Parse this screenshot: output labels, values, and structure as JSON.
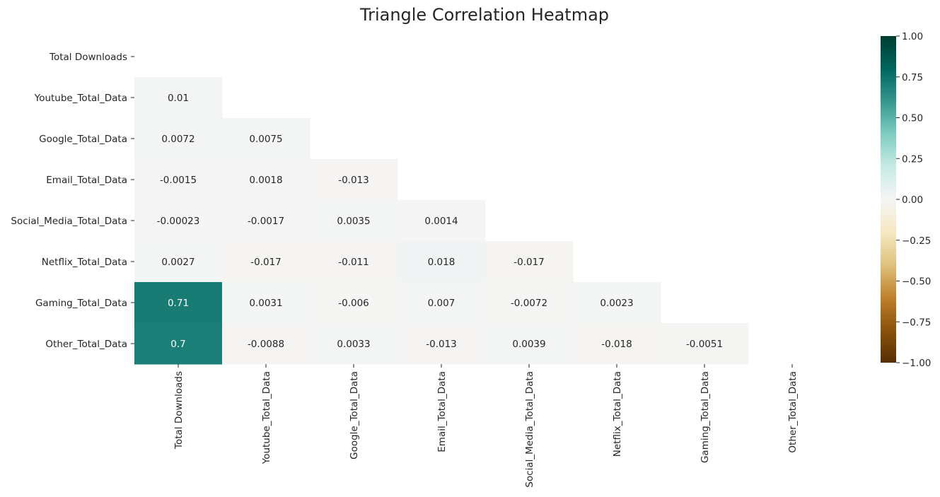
{
  "chart_data": {
    "type": "heatmap",
    "title": "Triangle Correlation Heatmap",
    "variables": [
      "Total Downloads",
      "Youtube_Total_Data",
      "Google_Total_Data",
      "Email_Total_Data",
      "Social_Media_Total_Data",
      "Netflix_Total_Data",
      "Gaming_Total_Data",
      "Other_Total_Data"
    ],
    "mask": "upper triangle including diagonal",
    "cells": [
      {
        "row": 1,
        "col": 0,
        "value": 0.01,
        "label": "0.01"
      },
      {
        "row": 2,
        "col": 0,
        "value": 0.0072,
        "label": "0.0072"
      },
      {
        "row": 2,
        "col": 1,
        "value": 0.0075,
        "label": "0.0075"
      },
      {
        "row": 3,
        "col": 0,
        "value": -0.0015,
        "label": "-0.0015"
      },
      {
        "row": 3,
        "col": 1,
        "value": 0.0018,
        "label": "0.0018"
      },
      {
        "row": 3,
        "col": 2,
        "value": -0.013,
        "label": "-0.013"
      },
      {
        "row": 4,
        "col": 0,
        "value": -0.00023,
        "label": "-0.00023"
      },
      {
        "row": 4,
        "col": 1,
        "value": -0.0017,
        "label": "-0.0017"
      },
      {
        "row": 4,
        "col": 2,
        "value": 0.0035,
        "label": "0.0035"
      },
      {
        "row": 4,
        "col": 3,
        "value": 0.0014,
        "label": "0.0014"
      },
      {
        "row": 5,
        "col": 0,
        "value": 0.0027,
        "label": "0.0027"
      },
      {
        "row": 5,
        "col": 1,
        "value": -0.017,
        "label": "-0.017"
      },
      {
        "row": 5,
        "col": 2,
        "value": -0.011,
        "label": "-0.011"
      },
      {
        "row": 5,
        "col": 3,
        "value": 0.018,
        "label": "0.018"
      },
      {
        "row": 5,
        "col": 4,
        "value": -0.017,
        "label": "-0.017"
      },
      {
        "row": 6,
        "col": 0,
        "value": 0.71,
        "label": "0.71"
      },
      {
        "row": 6,
        "col": 1,
        "value": 0.0031,
        "label": "0.0031"
      },
      {
        "row": 6,
        "col": 2,
        "value": -0.006,
        "label": "-0.006"
      },
      {
        "row": 6,
        "col": 3,
        "value": 0.007,
        "label": "0.007"
      },
      {
        "row": 6,
        "col": 4,
        "value": -0.0072,
        "label": "-0.0072"
      },
      {
        "row": 6,
        "col": 5,
        "value": 0.0023,
        "label": "0.0023"
      },
      {
        "row": 7,
        "col": 0,
        "value": 0.7,
        "label": "0.7"
      },
      {
        "row": 7,
        "col": 1,
        "value": -0.0088,
        "label": "-0.0088"
      },
      {
        "row": 7,
        "col": 2,
        "value": 0.0033,
        "label": "0.0033"
      },
      {
        "row": 7,
        "col": 3,
        "value": -0.013,
        "label": "-0.013"
      },
      {
        "row": 7,
        "col": 4,
        "value": 0.0039,
        "label": "0.0039"
      },
      {
        "row": 7,
        "col": 5,
        "value": -0.018,
        "label": "-0.018"
      },
      {
        "row": 7,
        "col": 6,
        "value": -0.0051,
        "label": "-0.0051"
      }
    ],
    "colorbar": {
      "vmin": -1,
      "vmax": 1,
      "ticks": [
        1.0,
        0.75,
        0.5,
        0.25,
        0.0,
        -0.25,
        -0.5,
        -0.75,
        -1.0
      ],
      "tick_labels": [
        "1.00",
        "0.75",
        "0.50",
        "0.25",
        "0.00",
        "−0.25",
        "−0.50",
        "−0.75",
        "−1.00"
      ],
      "colormap": "BrBG",
      "colormap_stops": [
        "#543005",
        "#8c510a",
        "#bf812d",
        "#dfc27d",
        "#f6e8c3",
        "#f5f5f5",
        "#c7eae5",
        "#80cdc1",
        "#35978f",
        "#01665e",
        "#003c30"
      ]
    },
    "grid": false,
    "legend": "colorbar at right"
  }
}
